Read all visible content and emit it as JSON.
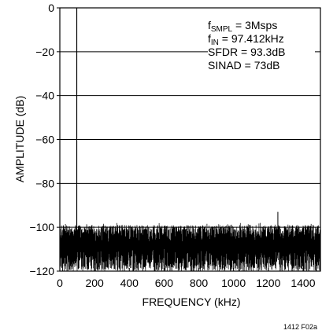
{
  "chart_data": {
    "type": "line",
    "title": "",
    "xlabel": "FREQUENCY (kHz)",
    "ylabel": "AMPLITUDE (dB)",
    "xlim": [
      0,
      1500
    ],
    "ylim": [
      -120,
      0
    ],
    "xticks": [
      0,
      200,
      400,
      600,
      800,
      1000,
      1200,
      1400
    ],
    "xtick_labels": [
      "0",
      "200",
      "400",
      "600",
      "800",
      "1000",
      "1200",
      "1400"
    ],
    "yticks": [
      0,
      -20,
      -40,
      -60,
      -80,
      -100,
      -120
    ],
    "ytick_labels": [
      "0",
      "−20",
      "−40",
      "−60",
      "−80",
      "−100",
      "−120"
    ],
    "grid": "horizontal",
    "series": [
      {
        "signal_peak": {
          "x": 97.412,
          "y": 0
        },
        "noise_floor": {
          "x_range": [
            0,
            1500
          ],
          "y_range": [
            -120,
            -99
          ],
          "typical": -108
        },
        "spurs": [
          {
            "x": 97.412,
            "y": -27
          },
          {
            "x": 1255,
            "y": -93
          }
        ]
      }
    ],
    "annotations": [
      {
        "main": "f",
        "sub": "SMPL",
        "rest": " = 3Msps"
      },
      {
        "main": "f",
        "sub": "IN",
        "rest": " = 97.412kHz"
      },
      {
        "main": "SFDR = 93.3dB",
        "sub": "",
        "rest": ""
      },
      {
        "main": "SINAD = 73dB",
        "sub": "",
        "rest": ""
      }
    ],
    "figure_number": "1412 F02a"
  }
}
